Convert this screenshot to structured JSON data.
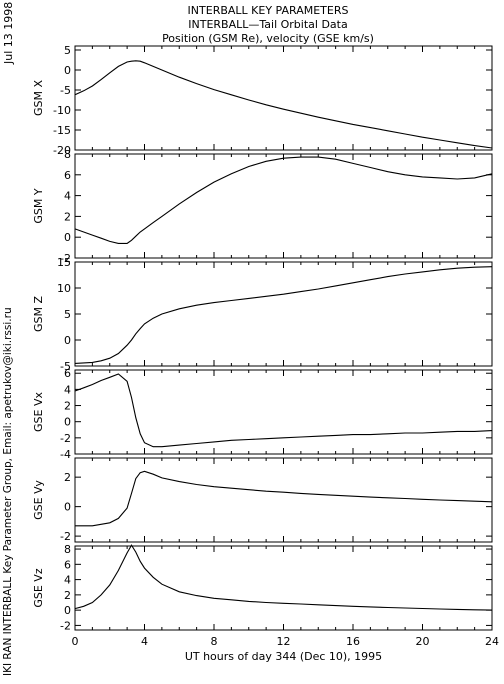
{
  "header": {
    "line1": "INTERBALL KEY PARAMETERS",
    "line2": "INTERBALL—Tail Orbital Data",
    "line3": "Position (GSM Re), velocity (GSE km/s)"
  },
  "side": {
    "date": "Jul 13 1998",
    "credit": "IKI RAN INTERBALL Key Parameter Group, Email: apetrukov@iki.rssi.ru"
  },
  "chart_data": {
    "type": "line",
    "xlabel": "UT hours of day 344 (Dec 10), 1995",
    "xlim": [
      0,
      24
    ],
    "xticks": [
      0,
      4,
      8,
      12,
      16,
      20,
      24
    ],
    "x": [
      0,
      0.5,
      1,
      1.5,
      2,
      2.5,
      3,
      3.25,
      3.5,
      3.75,
      4,
      4.5,
      5,
      6,
      7,
      8,
      9,
      10,
      11,
      12,
      13,
      14,
      15,
      16,
      17,
      18,
      19,
      20,
      21,
      22,
      23,
      24
    ],
    "panels": [
      {
        "ylabel": "GSM X",
        "ylim": [
          -20,
          6
        ],
        "yticks": [
          5,
          0,
          -5,
          -10,
          -15,
          -20
        ],
        "values": [
          -6.2,
          -5.2,
          -4.0,
          -2.4,
          -0.7,
          0.9,
          2.0,
          2.2,
          2.3,
          2.2,
          1.8,
          0.9,
          0.0,
          -1.8,
          -3.4,
          -4.9,
          -6.2,
          -7.5,
          -8.7,
          -9.8,
          -10.8,
          -11.8,
          -12.7,
          -13.6,
          -14.4,
          -15.2,
          -16.0,
          -16.8,
          -17.5,
          -18.2,
          -18.9,
          -19.5
        ]
      },
      {
        "ylabel": "GSM Y",
        "ylim": [
          -2,
          8
        ],
        "yticks": [
          8,
          6,
          4,
          2,
          0,
          -2
        ],
        "values": [
          0.8,
          0.5,
          0.2,
          -0.1,
          -0.4,
          -0.6,
          -0.6,
          -0.3,
          0.1,
          0.5,
          0.8,
          1.4,
          2.0,
          3.2,
          4.3,
          5.3,
          6.1,
          6.8,
          7.3,
          7.6,
          7.7,
          7.7,
          7.5,
          7.1,
          6.7,
          6.3,
          6.0,
          5.8,
          5.7,
          5.6,
          5.7,
          6.1
        ]
      },
      {
        "ylabel": "GSM Z",
        "ylim": [
          -5,
          15
        ],
        "yticks": [
          15,
          10,
          5,
          0,
          -5
        ],
        "values": [
          -4.5,
          -4.4,
          -4.3,
          -4.0,
          -3.5,
          -2.6,
          -1.0,
          0.0,
          1.2,
          2.2,
          3.1,
          4.2,
          5.0,
          6.0,
          6.7,
          7.2,
          7.6,
          8.0,
          8.4,
          8.8,
          9.3,
          9.8,
          10.4,
          11.0,
          11.6,
          12.2,
          12.7,
          13.1,
          13.5,
          13.8,
          14.0,
          14.1
        ]
      },
      {
        "ylabel": "GSE Vx",
        "ylim": [
          -4,
          6.4
        ],
        "yticks": [
          6,
          4,
          2,
          0,
          -2,
          -4
        ],
        "values": [
          3.8,
          4.2,
          4.6,
          5.1,
          5.5,
          5.9,
          5.0,
          3.0,
          0.5,
          -1.5,
          -2.6,
          -3.1,
          -3.1,
          -2.9,
          -2.7,
          -2.5,
          -2.3,
          -2.2,
          -2.1,
          -2.0,
          -1.9,
          -1.8,
          -1.7,
          -1.6,
          -1.6,
          -1.5,
          -1.4,
          -1.4,
          -1.3,
          -1.2,
          -1.2,
          -1.1
        ]
      },
      {
        "ylabel": "GSE Vy",
        "ylim": [
          -2.4,
          3.3
        ],
        "yticks": [
          2,
          0,
          -2
        ],
        "values": [
          -1.3,
          -1.3,
          -1.3,
          -1.2,
          -1.1,
          -0.8,
          -0.1,
          0.9,
          1.9,
          2.3,
          2.4,
          2.2,
          1.95,
          1.7,
          1.5,
          1.35,
          1.25,
          1.15,
          1.05,
          0.98,
          0.9,
          0.83,
          0.77,
          0.71,
          0.65,
          0.6,
          0.55,
          0.5,
          0.45,
          0.41,
          0.37,
          0.33
        ]
      },
      {
        "ylabel": "GSE Vz",
        "ylim": [
          -2.6,
          8.4
        ],
        "yticks": [
          8,
          6,
          4,
          2,
          0,
          -2
        ],
        "values": [
          0.2,
          0.5,
          1.0,
          2.0,
          3.3,
          5.2,
          7.5,
          8.5,
          7.6,
          6.4,
          5.5,
          4.3,
          3.4,
          2.4,
          1.9,
          1.55,
          1.35,
          1.15,
          1.0,
          0.9,
          0.8,
          0.7,
          0.6,
          0.5,
          0.42,
          0.35,
          0.28,
          0.22,
          0.15,
          0.1,
          0.05,
          0.0
        ]
      }
    ]
  }
}
